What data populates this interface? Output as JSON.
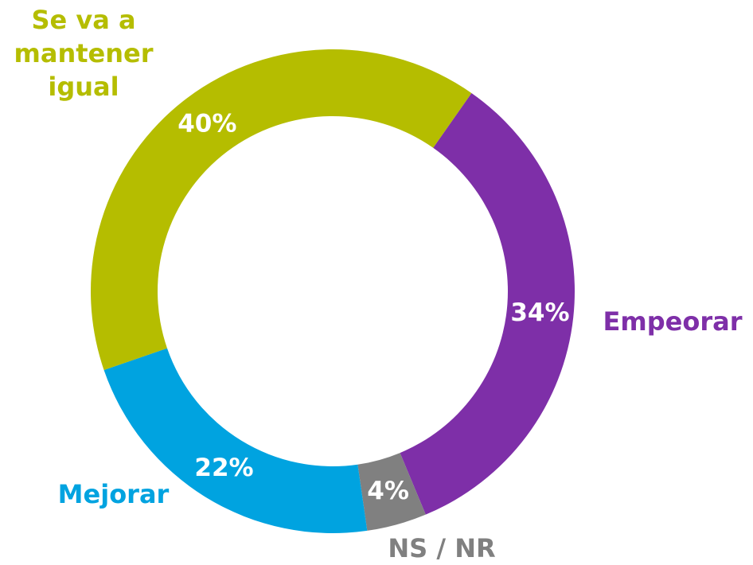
{
  "chart_data": {
    "type": "donut",
    "categories": [
      "Empeorar",
      "NS / NR",
      "Mejorar",
      "Se va a mantener igual"
    ],
    "values": [
      34,
      4,
      22,
      40
    ],
    "value_labels": [
      "34%",
      "4%",
      "22%",
      "40%"
    ],
    "colors": [
      "#7e2fa8",
      "#808080",
      "#00a3e0",
      "#b5bd00"
    ]
  }
}
